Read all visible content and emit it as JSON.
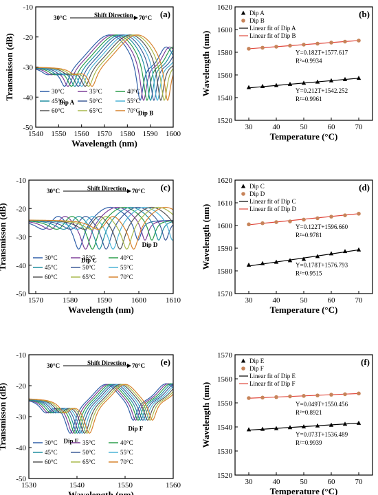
{
  "chart_data": [
    {
      "id": "a",
      "panel_label": "(a)",
      "type": "line",
      "xlabel": "Wavelength (nm)",
      "ylabel": "Transmisson (dB)",
      "xlim": [
        1540,
        1600
      ],
      "ylim": [
        -50,
        -10
      ],
      "xticks": [
        1540,
        1550,
        1560,
        1570,
        1580,
        1590,
        1600
      ],
      "yticks": [
        -50,
        -40,
        -30,
        -20,
        -10
      ],
      "annotation": {
        "left": "30°C",
        "center": "Shift Direction",
        "right": "70°C"
      },
      "dip_labels": [
        {
          "text": "Dip A",
          "x": 1553.5,
          "y": -42.5
        },
        {
          "text": "Dip B",
          "x": 1588,
          "y": -46
        }
      ],
      "legend_placement": "lower-left",
      "series_names": [
        "30°C",
        "35°C",
        "40°C",
        "45°C",
        "50°C",
        "55°C",
        "60°C",
        "65°C",
        "70°C"
      ],
      "spectrum": {
        "shift_per_step": 0.3,
        "dips": [
          [
            1552.6,
            -36,
            2.4
          ],
          [
            1585.6,
            -41,
            1.8
          ],
          [
            1545,
            -32,
            3
          ]
        ],
        "peaks": [
          [
            1572.5,
            -18.5,
            12
          ],
          [
            1597,
            -23,
            4
          ]
        ],
        "baseline": -30
      }
    },
    {
      "id": "b",
      "panel_label": "(b)",
      "type": "scatter",
      "xlabel": "Temperature (°C)",
      "ylabel": "Wavelength (nm)",
      "xlim": [
        25,
        75
      ],
      "ylim": [
        1520,
        1620
      ],
      "xticks": [
        30,
        40,
        50,
        60,
        70
      ],
      "yticks": [
        1520,
        1540,
        1560,
        1580,
        1600,
        1620
      ],
      "legend_placement": "top-left",
      "series": [
        {
          "name": "Dip A",
          "marker": "triangle",
          "color": "#000000",
          "x": [
            30,
            35,
            40,
            45,
            50,
            55,
            60,
            65,
            70
          ],
          "y": [
            1549.0,
            1550.0,
            1550.8,
            1551.9,
            1552.9,
            1553.9,
            1555.0,
            1556.1,
            1557.2
          ]
        },
        {
          "name": "Dip B",
          "marker": "circle",
          "color": "#c7845a",
          "x": [
            30,
            35,
            40,
            45,
            50,
            55,
            60,
            65,
            70
          ],
          "y": [
            1583.1,
            1584.0,
            1584.9,
            1585.8,
            1586.7,
            1587.6,
            1588.5,
            1589.4,
            1590.3
          ]
        }
      ],
      "fits": [
        {
          "name": "Linear fit of Dip A",
          "color": "#000000",
          "slope": 0.212,
          "intercept": 1542.252,
          "equation": "Y=0.212T+1542.252",
          "r2": "R²=0.9961"
        },
        {
          "name": "Linear fit of Dip B",
          "color": "#e0483c",
          "slope": 0.182,
          "intercept": 1577.617,
          "equation": "Y=0.182T+1577.617",
          "r2": "R²=0.9934"
        }
      ]
    },
    {
      "id": "c",
      "panel_label": "(c)",
      "type": "line",
      "xlabel": "Wavelength (nm)",
      "ylabel": "Transmisson (dB)",
      "xlim": [
        1568,
        1610
      ],
      "ylim": [
        -50,
        -10
      ],
      "xticks": [
        1570,
        1580,
        1590,
        1600,
        1610
      ],
      "yticks": [
        -50,
        -40,
        -30,
        -20,
        -10
      ],
      "annotation": {
        "left": "30°C",
        "center": "Shift Direction",
        "right": "70°C"
      },
      "dip_labels": [
        {
          "text": "Dip C",
          "x": 1585.5,
          "y": -39
        },
        {
          "text": "Dip D",
          "x": 1603.2,
          "y": -33.5
        }
      ],
      "legend_placement": "lower-left",
      "series_names": [
        "30°C",
        "35°C",
        "40°C",
        "45°C",
        "50°C",
        "55°C",
        "60°C",
        "65°C",
        "70°C"
      ],
      "spectrum": {
        "shift_per_step": 0.4,
        "dips": [
          [
            1582.5,
            -34,
            1.8
          ],
          [
            1599.8,
            -31,
            1.3
          ],
          [
            1572,
            -27,
            3
          ]
        ],
        "peaks": [
          [
            1591.5,
            -18.5,
            6
          ],
          [
            1576,
            -19,
            3
          ]
        ],
        "baseline": -24
      }
    },
    {
      "id": "d",
      "panel_label": "(d)",
      "type": "scatter",
      "xlabel": "Temperature (°C)",
      "ylabel": "Wavelength (nm)",
      "xlim": [
        25,
        75
      ],
      "ylim": [
        1570,
        1620
      ],
      "xticks": [
        30,
        40,
        50,
        60,
        70
      ],
      "yticks": [
        1570,
        1580,
        1590,
        1600,
        1610,
        1620
      ],
      "legend_placement": "top-left",
      "series": [
        {
          "name": "Dip C",
          "marker": "triangle",
          "color": "#000000",
          "x": [
            30,
            35,
            40,
            45,
            50,
            55,
            60,
            65,
            70
          ],
          "y": [
            1582.6,
            1583.3,
            1583.9,
            1584.6,
            1585.2,
            1586.4,
            1587.6,
            1588.6,
            1589.3
          ]
        },
        {
          "name": "Dip D",
          "marker": "circle",
          "color": "#c7845a",
          "x": [
            30,
            35,
            40,
            45,
            50,
            55,
            60,
            65,
            70
          ],
          "y": [
            1600.5,
            1601.0,
            1601.5,
            1601.8,
            1602.6,
            1603.2,
            1603.9,
            1604.5,
            1605.2
          ]
        }
      ],
      "fits": [
        {
          "name": "Linear fit of Dip C",
          "color": "#000000",
          "slope": 0.178,
          "intercept": 1576.793,
          "equation": "Y=0.178T+1576.793",
          "r2": "R²=0.9515"
        },
        {
          "name": "Linear fit of Dip D",
          "color": "#e0483c",
          "slope": 0.122,
          "intercept": 1596.66,
          "equation": "Y=0.122T+1596.660",
          "r2": "R²=0.9781"
        }
      ]
    },
    {
      "id": "e",
      "panel_label": "(e)",
      "type": "line",
      "xlabel": "Wavelength (nm)",
      "ylabel": "Transmisson (dB)",
      "xlim": [
        1530,
        1560
      ],
      "ylim": [
        -50,
        -10
      ],
      "xticks": [
        1530,
        1540,
        1550,
        1560
      ],
      "yticks": [
        -50,
        -40,
        -30,
        -20,
        -10
      ],
      "annotation": {
        "left": "30°C",
        "center": "Shift Direction",
        "right": "70°C"
      },
      "dip_labels": [
        {
          "text": "Dip E",
          "x": 1538.8,
          "y": -38.5
        },
        {
          "text": "Dip F",
          "x": 1552.2,
          "y": -34.5
        }
      ],
      "legend_placement": "lower-left",
      "series_names": [
        "30°C",
        "35°C",
        "40°C",
        "45°C",
        "50°C",
        "55°C",
        "60°C",
        "65°C",
        "70°C"
      ],
      "spectrum": {
        "shift_per_step": 0.1,
        "dips": [
          [
            1538.6,
            -35,
            1.4
          ],
          [
            1551.7,
            -31,
            1.0
          ],
          [
            1533.5,
            -28,
            1.5
          ]
        ],
        "peaks": [
          [
            1546,
            -18.5,
            3
          ],
          [
            1558.5,
            -19,
            2.5
          ]
        ],
        "baseline": -24
      }
    },
    {
      "id": "f",
      "panel_label": "(f)",
      "type": "scatter",
      "xlabel": "Temperature (°C)",
      "ylabel": "Wavelength (nm)",
      "xlim": [
        25,
        75
      ],
      "ylim": [
        1520,
        1570
      ],
      "xticks": [
        30,
        40,
        50,
        60,
        70
      ],
      "yticks": [
        1520,
        1530,
        1540,
        1550,
        1560,
        1570
      ],
      "legend_placement": "top-left",
      "series": [
        {
          "name": "Dip E",
          "marker": "triangle",
          "color": "#000000",
          "x": [
            30,
            35,
            40,
            45,
            50,
            55,
            60,
            65,
            70
          ],
          "y": [
            1538.9,
            1539.1,
            1539.4,
            1539.8,
            1540.1,
            1540.5,
            1540.8,
            1541.2,
            1541.6
          ]
        },
        {
          "name": "Dip F",
          "marker": "circle",
          "color": "#c7845a",
          "x": [
            30,
            35,
            40,
            45,
            50,
            55,
            60,
            65,
            70
          ],
          "y": [
            1552.0,
            1552.2,
            1552.4,
            1552.7,
            1552.9,
            1553.1,
            1553.4,
            1553.6,
            1553.9
          ]
        }
      ],
      "fits": [
        {
          "name": "Linear fit of Dip E",
          "color": "#000000",
          "slope": 0.073,
          "intercept": 1536.489,
          "equation": "Y=0.073T+1536.489",
          "r2": "R²=0.9939"
        },
        {
          "name": "Linear fit of Dip F",
          "color": "#e0483c",
          "slope": 0.049,
          "intercept": 1550.456,
          "equation": "Y=0.049T+1550.456",
          "r2": "R²=0.8921"
        }
      ]
    }
  ],
  "temperature_colors": [
    "#2f5fa8",
    "#7d3f98",
    "#2a9d4a",
    "#1f8ea0",
    "#3d5c99",
    "#4bb3d6",
    "#555555",
    "#a8b84a",
    "#d7822d"
  ]
}
